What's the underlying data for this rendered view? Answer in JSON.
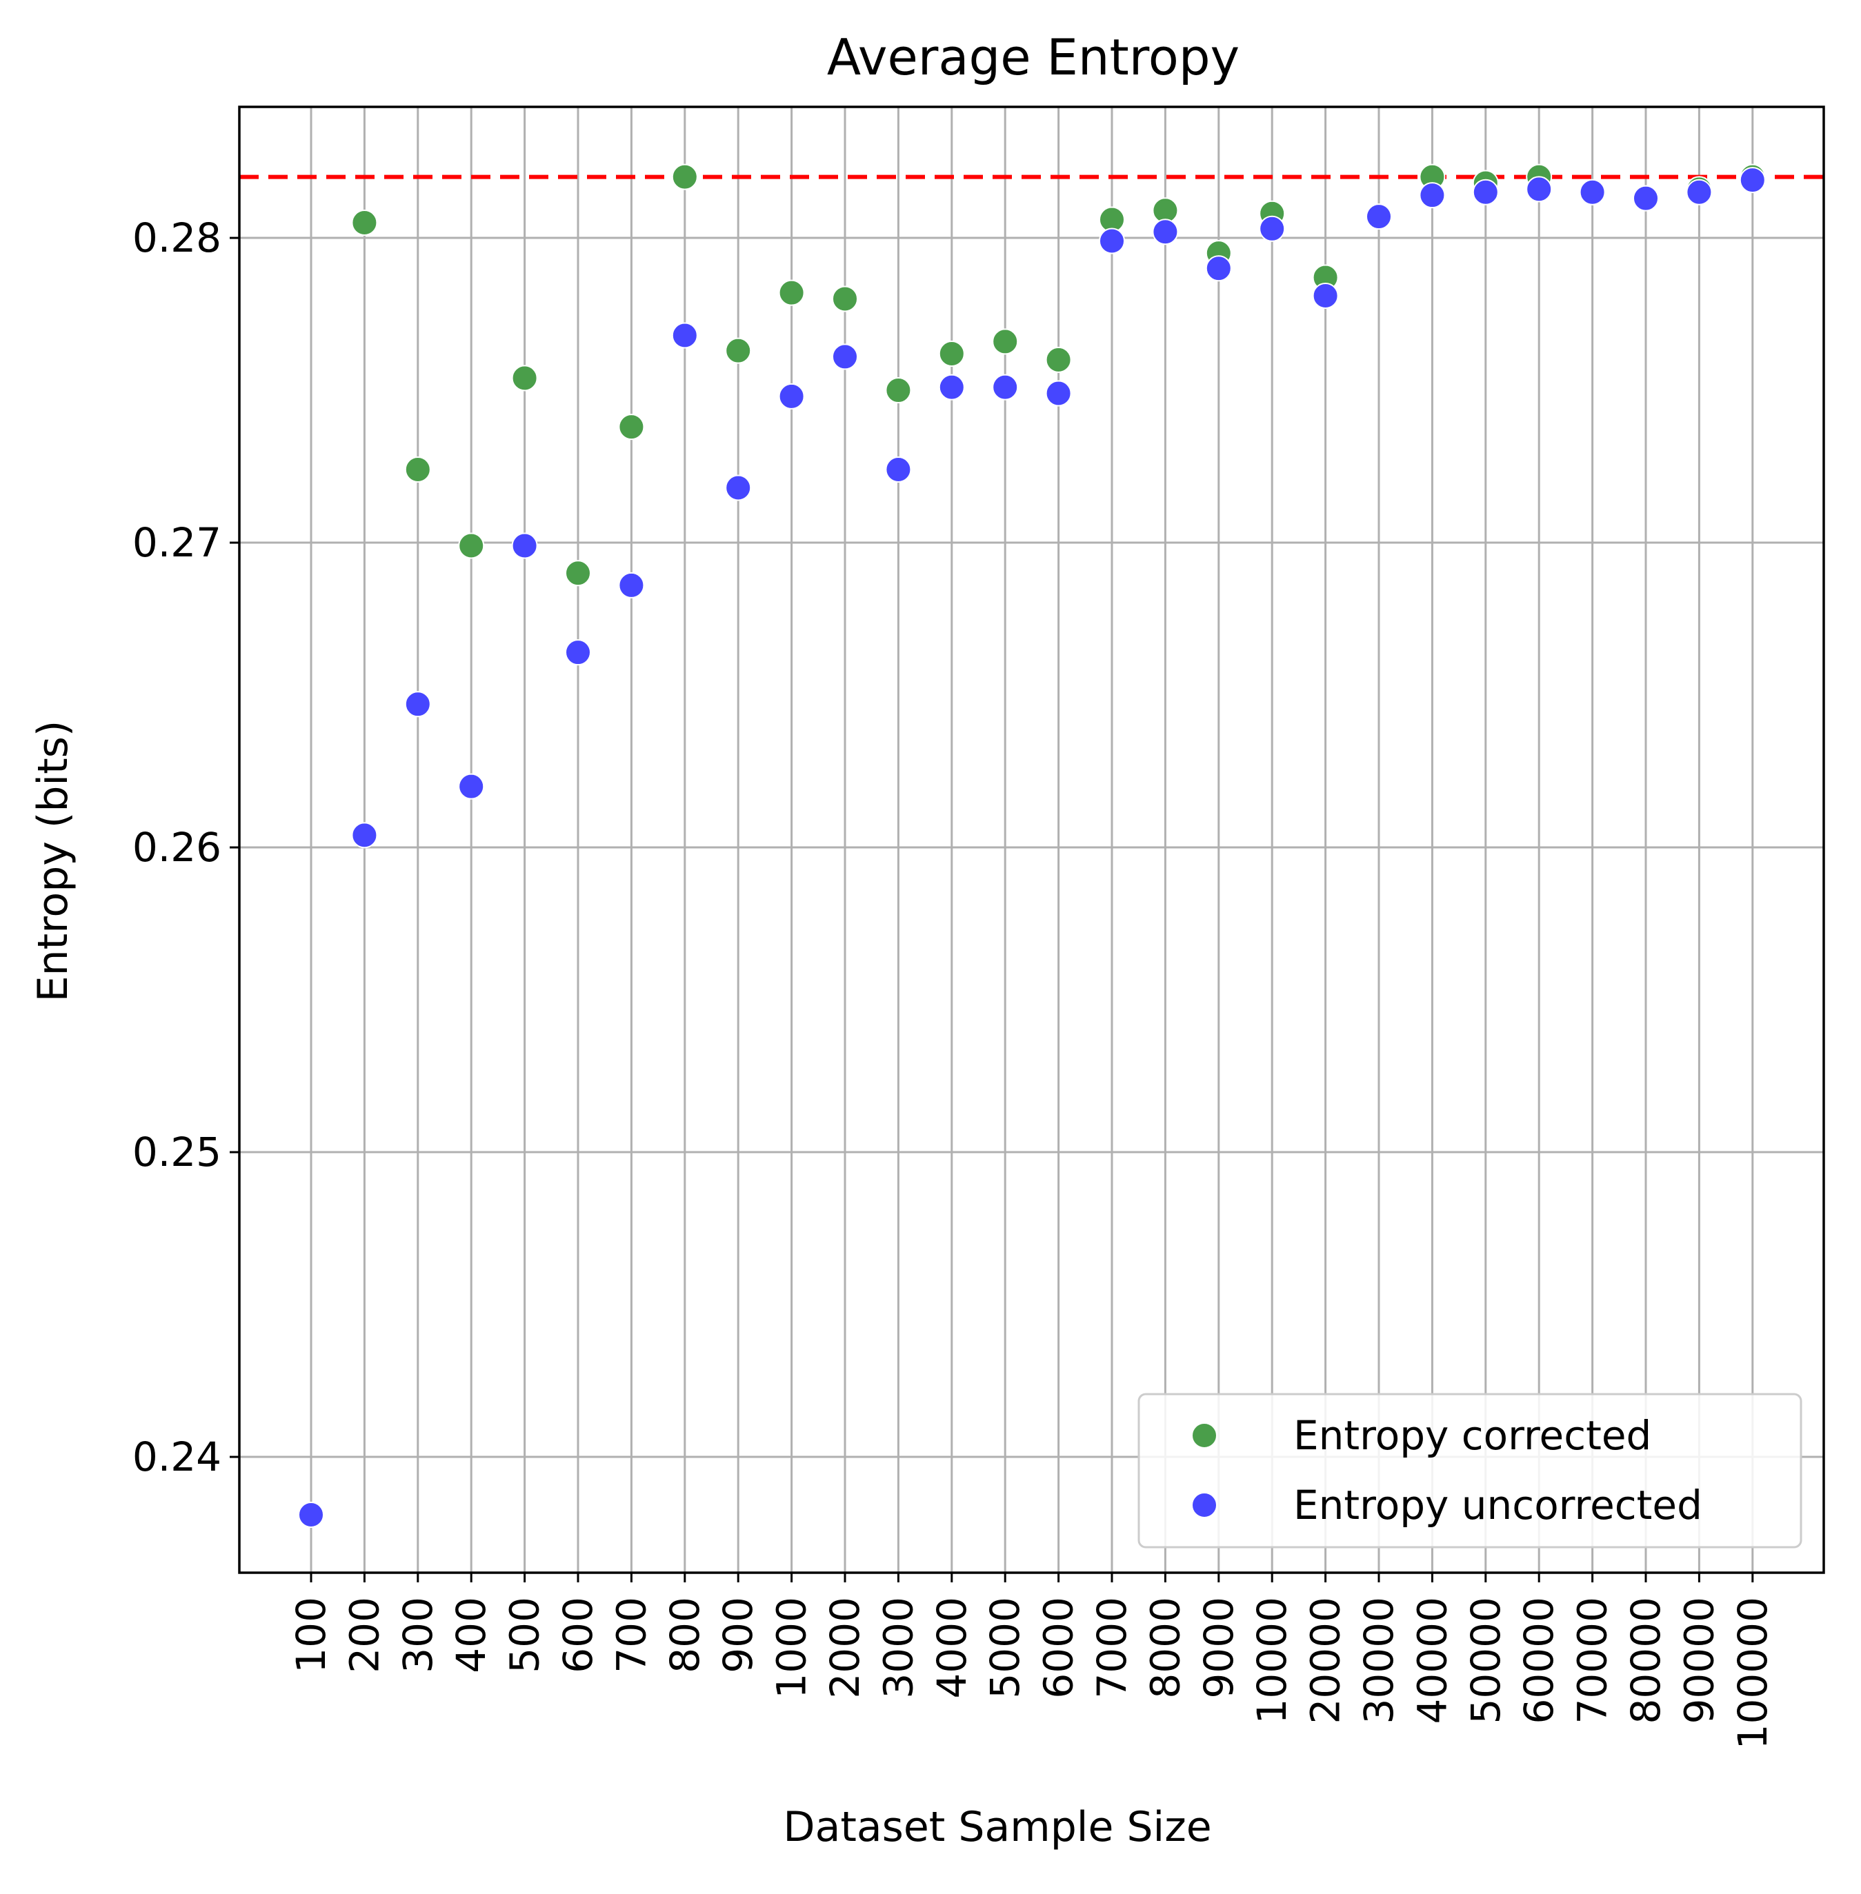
{
  "chart_data": {
    "type": "scatter",
    "title": "Average Entropy",
    "xlabel": "Dataset Sample Size",
    "ylabel": "Entropy (bits)",
    "categories": [
      "100",
      "200",
      "300",
      "400",
      "500",
      "600",
      "700",
      "800",
      "900",
      "1000",
      "2000",
      "3000",
      "4000",
      "5000",
      "6000",
      "7000",
      "8000",
      "9000",
      "10000",
      "20000",
      "30000",
      "40000",
      "50000",
      "60000",
      "70000",
      "80000",
      "90000",
      "100000"
    ],
    "ylim": [
      0.2362,
      0.2843
    ],
    "yticks": [
      0.24,
      0.25,
      0.26,
      0.27,
      0.28
    ],
    "ytick_labels": [
      "0.24",
      "0.25",
      "0.26",
      "0.27",
      "0.28"
    ],
    "grid": true,
    "legend_position": "lower-right",
    "reference_line": {
      "y": 0.282,
      "color": "#ff0000",
      "style": "dashed"
    },
    "series": [
      {
        "name": "Entropy corrected",
        "color": "#4a9e4a",
        "values": [
          0.2381,
          0.2805,
          0.2724,
          0.2699,
          0.2754,
          0.269,
          0.2738,
          0.282,
          0.2763,
          0.2782,
          0.278,
          0.275,
          0.2762,
          0.2766,
          0.276,
          0.2806,
          0.2809,
          0.2795,
          0.2808,
          0.2787,
          0.2807,
          0.282,
          0.2818,
          0.282,
          0.2815,
          0.2813,
          0.2816,
          0.282
        ]
      },
      {
        "name": "Entropy uncorrected",
        "color": "#4646ff",
        "values": [
          0.2381,
          0.2604,
          0.2647,
          0.262,
          0.2699,
          0.2664,
          0.2686,
          0.2768,
          0.2718,
          0.2748,
          0.2761,
          0.2724,
          0.2751,
          0.2751,
          0.2749,
          0.2799,
          0.2802,
          0.279,
          0.2803,
          0.2781,
          0.2807,
          0.2814,
          0.2815,
          0.2816,
          0.2815,
          0.2813,
          0.2815,
          0.2819
        ]
      }
    ]
  }
}
